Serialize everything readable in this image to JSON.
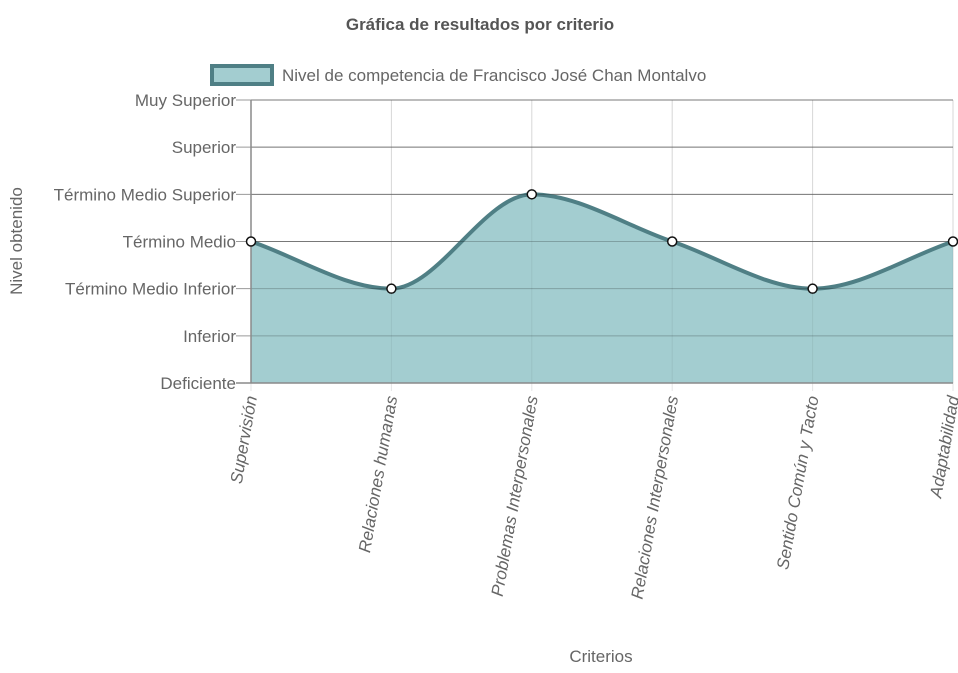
{
  "chart_data": {
    "type": "area",
    "title": "Gráfica de resultados por criterio",
    "xlabel": "Criterios",
    "ylabel": "Nivel obtenido",
    "categories": [
      "Supervisión",
      "Relaciones humanas",
      "Problemas Interpersonales",
      "Relaciones Interpersonales",
      "Sentido Común y Tacto",
      "Adaptabilidad"
    ],
    "y_levels": [
      "Deficiente",
      "Inferior",
      "Término Medio Inferior",
      "Término Medio",
      "Término Medio Superior",
      "Superior",
      "Muy Superior"
    ],
    "ylim": [
      0,
      6
    ],
    "grid": true,
    "legend_position": "top",
    "series": [
      {
        "name": "Nivel de competencia de Francisco José Chan Montalvo",
        "values": [
          3,
          2,
          4,
          3,
          2,
          3
        ],
        "fill_color": "#a3cdd0",
        "line_color": "#4f7f85",
        "point_color": "#ffffff"
      }
    ],
    "colors": {
      "grid_x": "#e5e5e5",
      "grid_y": "#9a9a9a",
      "axis": "#8a8a8a"
    }
  }
}
